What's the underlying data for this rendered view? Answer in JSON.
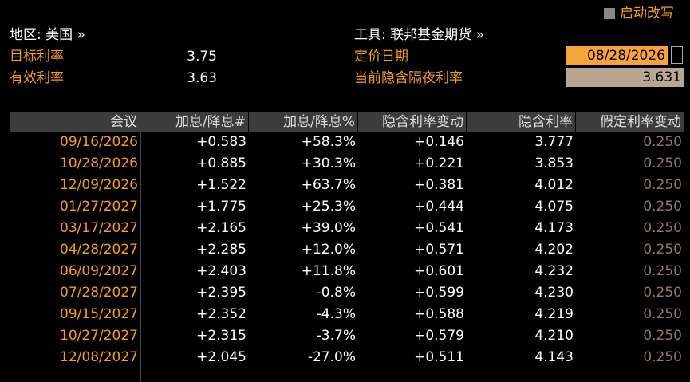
{
  "header": {
    "button": "启动改写",
    "region": "地区: 美国 »",
    "instrument": "工具: 联邦基金期货 »",
    "fields": [
      {
        "label": "目标利率",
        "value": "3.75"
      },
      {
        "label": "有效利率",
        "value": "3.63"
      },
      {
        "label": "定价日期",
        "value": "08/28/2026"
      },
      {
        "label": "当前隐含隔夜利率",
        "value": "3.631"
      }
    ]
  },
  "table": {
    "columns": [
      "会议",
      "加息/降息#",
      "加息/降息%",
      "隐含利率变动",
      "隐含利率",
      "假定利率变动"
    ],
    "rows": [
      [
        "09/16/2026",
        "+0.583",
        "+58.3%",
        "+0.146",
        "3.777",
        "0.250"
      ],
      [
        "10/28/2026",
        "+0.885",
        "+30.3%",
        "+0.221",
        "3.853",
        "0.250"
      ],
      [
        "12/09/2026",
        "+1.522",
        "+63.7%",
        "+0.381",
        "4.012",
        "0.250"
      ],
      [
        "01/27/2027",
        "+1.775",
        "+25.3%",
        "+0.444",
        "4.075",
        "0.250"
      ],
      [
        "03/17/2027",
        "+2.165",
        "+39.0%",
        "+0.541",
        "4.173",
        "0.250"
      ],
      [
        "04/28/2027",
        "+2.285",
        "+12.0%",
        "+0.571",
        "4.202",
        "0.250"
      ],
      [
        "06/09/2027",
        "+2.403",
        "+11.8%",
        "+0.601",
        "4.232",
        "0.250"
      ],
      [
        "07/28/2027",
        "+2.395",
        "-0.8%",
        "+0.599",
        "4.230",
        "0.250"
      ],
      [
        "09/15/2027",
        "+2.352",
        "-4.3%",
        "+0.588",
        "4.219",
        "0.250"
      ],
      [
        "10/27/2027",
        "+2.315",
        "-3.7%",
        "+0.579",
        "4.210",
        "0.250"
      ],
      [
        "12/08/2027",
        "+2.045",
        "-27.0%",
        "+0.511",
        "4.143",
        "0.250"
      ]
    ]
  }
}
